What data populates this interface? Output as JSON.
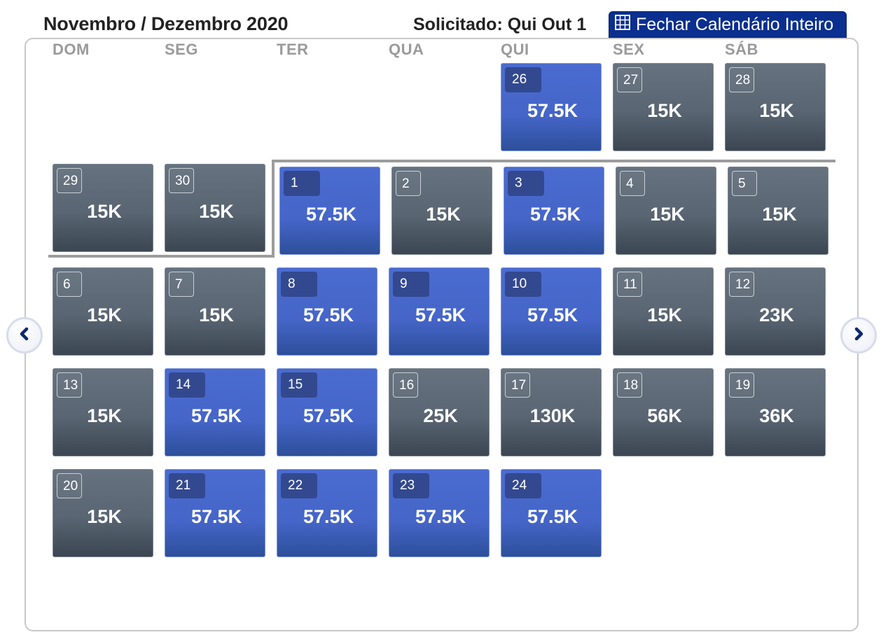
{
  "header": {
    "title": "Novembro / Dezembro 2020",
    "requested": "Solicitado: Qui Out 1",
    "close_calendar_label": "Fechar Calendário Inteiro"
  },
  "weekdays": [
    "DOM",
    "SEG",
    "TER",
    "QUA",
    "QUI",
    "SEX",
    "SÁB"
  ],
  "weeks": [
    [
      null,
      null,
      null,
      null,
      {
        "day": "26",
        "price": "57.5K",
        "award": true
      },
      {
        "day": "27",
        "price": "15K",
        "award": false
      },
      {
        "day": "28",
        "price": "15K",
        "award": false
      }
    ],
    [
      {
        "day": "29",
        "price": "15K",
        "award": false
      },
      {
        "day": "30",
        "price": "15K",
        "award": false
      },
      {
        "day": "1",
        "price": "57.5K",
        "award": true
      },
      {
        "day": "2",
        "price": "15K",
        "award": false
      },
      {
        "day": "3",
        "price": "57.5K",
        "award": true
      },
      {
        "day": "4",
        "price": "15K",
        "award": false
      },
      {
        "day": "5",
        "price": "15K",
        "award": false
      }
    ],
    [
      {
        "day": "6",
        "price": "15K",
        "award": false
      },
      {
        "day": "7",
        "price": "15K",
        "award": false
      },
      {
        "day": "8",
        "price": "57.5K",
        "award": true
      },
      {
        "day": "9",
        "price": "57.5K",
        "award": true
      },
      {
        "day": "10",
        "price": "57.5K",
        "award": true
      },
      {
        "day": "11",
        "price": "15K",
        "award": false
      },
      {
        "day": "12",
        "price": "23K",
        "award": false
      }
    ],
    [
      {
        "day": "13",
        "price": "15K",
        "award": false
      },
      {
        "day": "14",
        "price": "57.5K",
        "award": true
      },
      {
        "day": "15",
        "price": "57.5K",
        "award": true
      },
      {
        "day": "16",
        "price": "25K",
        "award": false
      },
      {
        "day": "17",
        "price": "130K",
        "award": false
      },
      {
        "day": "18",
        "price": "56K",
        "award": false
      },
      {
        "day": "19",
        "price": "36K",
        "award": false
      }
    ],
    [
      {
        "day": "20",
        "price": "15K",
        "award": false
      },
      {
        "day": "21",
        "price": "57.5K",
        "award": true
      },
      {
        "day": "22",
        "price": "57.5K",
        "award": true
      },
      {
        "day": "23",
        "price": "57.5K",
        "award": true
      },
      {
        "day": "24",
        "price": "57.5K",
        "award": true
      },
      null,
      null
    ]
  ],
  "navigation": {
    "prev_icon": "chevron-left-icon",
    "next_icon": "chevron-right-icon"
  },
  "colors": {
    "award_cell": "#4565c8",
    "standard_cell": "#596572",
    "header_button": "#0b2f8f"
  }
}
